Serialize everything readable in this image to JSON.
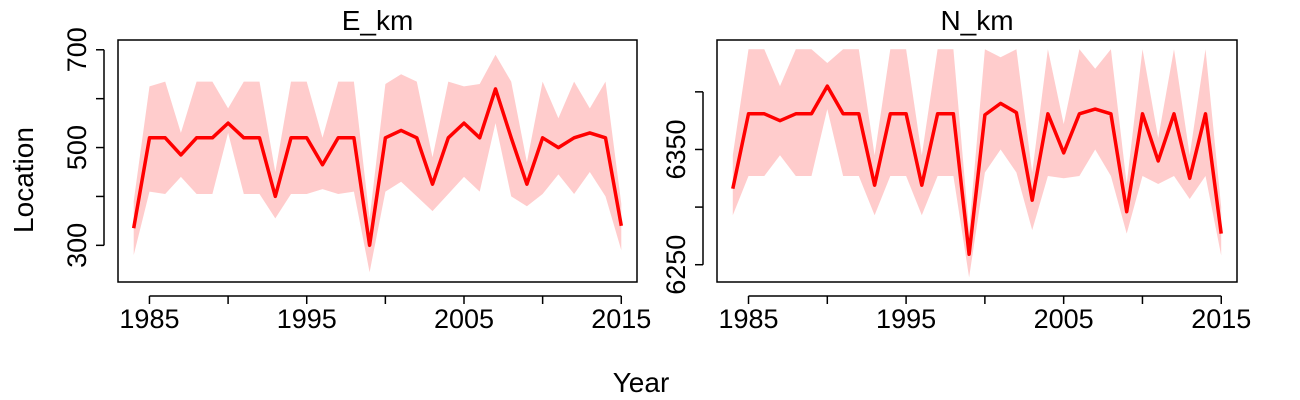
{
  "figure": {
    "xlabel": "Year",
    "ylabel": "Location"
  },
  "chart_data": [
    {
      "type": "line",
      "title": "E_km",
      "xlim": [
        1983,
        2016
      ],
      "ylim": [
        225,
        720
      ],
      "xticks": [
        1985,
        1990,
        1995,
        2000,
        2005,
        2010,
        2015
      ],
      "xtick_labels": [
        "1985",
        "",
        "1995",
        "",
        "2005",
        "",
        "2015"
      ],
      "yticks": [
        300,
        400,
        500,
        600,
        700
      ],
      "ytick_labels": [
        "300",
        "",
        "500",
        "",
        "700"
      ],
      "line_color": "#ff0000",
      "band_color": "#ffcccc",
      "series": [
        {
          "x": [
            1984,
            1985,
            1986,
            1987,
            1988,
            1989,
            1990,
            1991,
            1992,
            1993,
            1994,
            1995,
            1996,
            1997,
            1998,
            1999,
            2000,
            2001,
            2002,
            2003,
            2004,
            2005,
            2006,
            2007,
            2008,
            2009,
            2010,
            2011,
            2012,
            2013,
            2014,
            2015
          ],
          "values": [
            335,
            520,
            520,
            485,
            520,
            520,
            550,
            520,
            520,
            400,
            520,
            520,
            465,
            520,
            520,
            300,
            520,
            535,
            520,
            425,
            520,
            550,
            520,
            620,
            520,
            425,
            520,
            500,
            520,
            530,
            520,
            340
          ],
          "lower": [
            280,
            410,
            405,
            440,
            405,
            405,
            530,
            405,
            405,
            355,
            405,
            405,
            415,
            405,
            410,
            245,
            410,
            430,
            400,
            370,
            405,
            440,
            410,
            550,
            400,
            380,
            405,
            445,
            405,
            450,
            400,
            290
          ],
          "upper": [
            390,
            625,
            635,
            530,
            635,
            635,
            580,
            635,
            635,
            450,
            635,
            635,
            520,
            635,
            635,
            355,
            630,
            650,
            635,
            480,
            635,
            625,
            630,
            690,
            635,
            470,
            635,
            560,
            635,
            580,
            635,
            385
          ]
        }
      ]
    },
    {
      "type": "line",
      "title": "N_km",
      "xlim": [
        1983,
        2016
      ],
      "ylim": [
        6235,
        6445
      ],
      "xticks": [
        1985,
        1990,
        1995,
        2000,
        2005,
        2010,
        2015
      ],
      "xtick_labels": [
        "1985",
        "",
        "1995",
        "",
        "2005",
        "",
        "2015"
      ],
      "yticks": [
        6250,
        6300,
        6350,
        6400
      ],
      "ytick_labels": [
        "6250",
        "",
        "6350",
        ""
      ],
      "line_color": "#ff0000",
      "band_color": "#ffcccc",
      "series": [
        {
          "x": [
            1984,
            1985,
            1986,
            1987,
            1988,
            1989,
            1990,
            1991,
            1992,
            1993,
            1994,
            1995,
            1996,
            1997,
            1998,
            1999,
            2000,
            2001,
            2002,
            2003,
            2004,
            2005,
            2006,
            2007,
            2008,
            2009,
            2010,
            2011,
            2012,
            2013,
            2014,
            2015
          ],
          "values": [
            6316,
            6381,
            6381,
            6375,
            6381,
            6381,
            6405,
            6381,
            6381,
            6319,
            6381,
            6381,
            6319,
            6381,
            6381,
            6259,
            6380,
            6390,
            6382,
            6306,
            6381,
            6347,
            6381,
            6385,
            6381,
            6296,
            6381,
            6340,
            6381,
            6325,
            6381,
            6277
          ],
          "lower": [
            6293,
            6327,
            6327,
            6345,
            6327,
            6327,
            6385,
            6327,
            6327,
            6293,
            6327,
            6327,
            6293,
            6327,
            6327,
            6239,
            6330,
            6350,
            6330,
            6280,
            6327,
            6325,
            6327,
            6350,
            6327,
            6277,
            6327,
            6320,
            6327,
            6307,
            6327,
            6258
          ],
          "upper": [
            6345,
            6437,
            6437,
            6405,
            6437,
            6437,
            6425,
            6437,
            6437,
            6345,
            6437,
            6437,
            6345,
            6437,
            6437,
            6280,
            6437,
            6430,
            6437,
            6330,
            6437,
            6372,
            6437,
            6420,
            6437,
            6320,
            6437,
            6360,
            6437,
            6345,
            6437,
            6300
          ]
        }
      ]
    }
  ]
}
